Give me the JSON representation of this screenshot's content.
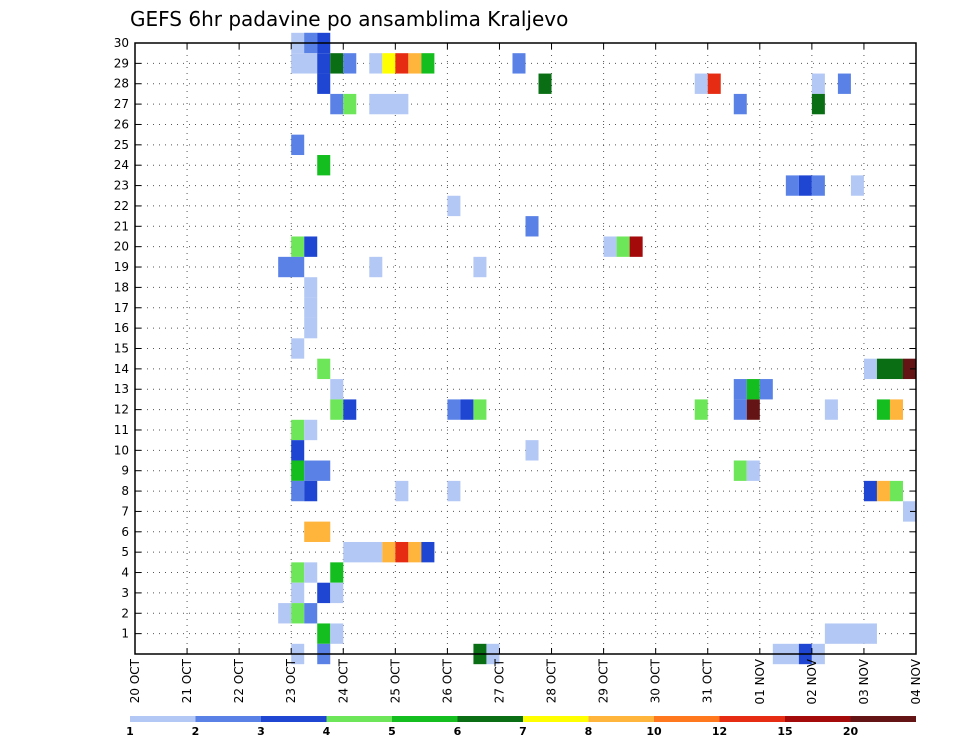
{
  "chart_data": {
    "type": "heatmap",
    "title": "GEFS 6hr padavine po ansamblima Kraljevo",
    "xlabel": "",
    "ylabel": "",
    "x_tick_labels": [
      "20 OCT",
      "21 OCT",
      "22 OCT",
      "23 OCT",
      "24 OCT",
      "25 OCT",
      "26 OCT",
      "27 OCT",
      "28 OCT",
      "29 OCT",
      "30 OCT",
      "31 OCT",
      "01 NOV",
      "02 NOV",
      "03 NOV",
      "04 NOV"
    ],
    "y_tick_labels": [
      "1",
      "2",
      "3",
      "4",
      "5",
      "6",
      "7",
      "8",
      "9",
      "10",
      "11",
      "12",
      "13",
      "14",
      "15",
      "16",
      "17",
      "18",
      "19",
      "20",
      "21",
      "22",
      "23",
      "24",
      "25",
      "26",
      "27",
      "28",
      "29",
      "30"
    ],
    "xlim": [
      0,
      15
    ],
    "ylim": [
      0,
      30
    ],
    "grid": true,
    "legend": {
      "placement": "bottom",
      "labels": [
        "1",
        "2",
        "3",
        "4",
        "5",
        "6",
        "7",
        "8",
        "10",
        "12",
        "15",
        "20"
      ],
      "colors": [
        "#b4c8f5",
        "#5a82e6",
        "#1e46d2",
        "#6ee65a",
        "#14be1e",
        "#0a6e14",
        "#ffff00",
        "#ffb43c",
        "#ff781e",
        "#e62d14",
        "#a50a0a",
        "#641414"
      ]
    },
    "cells": [
      {
        "x": 3.0,
        "w": 0.5,
        "y": 30,
        "v": 1
      },
      {
        "x": 3.25,
        "w": 0.25,
        "y": 30,
        "v": 2
      },
      {
        "x": 3.5,
        "w": 0.25,
        "y": 30,
        "v": 3
      },
      {
        "x": 3.0,
        "w": 0.5,
        "y": 29,
        "v": 1
      },
      {
        "x": 3.5,
        "w": 0.25,
        "y": 29,
        "v": 3
      },
      {
        "x": 3.75,
        "w": 0.25,
        "y": 29,
        "v": 6
      },
      {
        "x": 4.0,
        "w": 0.25,
        "y": 29,
        "v": 2
      },
      {
        "x": 4.5,
        "w": 0.25,
        "y": 29,
        "v": 1
      },
      {
        "x": 4.75,
        "w": 0.25,
        "y": 29,
        "v": 7
      },
      {
        "x": 5.0,
        "w": 0.25,
        "y": 29,
        "v": 12
      },
      {
        "x": 5.25,
        "w": 0.25,
        "y": 29,
        "v": 8
      },
      {
        "x": 5.5,
        "w": 0.25,
        "y": 29,
        "v": 5
      },
      {
        "x": 7.25,
        "w": 0.25,
        "y": 29,
        "v": 2
      },
      {
        "x": 3.5,
        "w": 0.25,
        "y": 28,
        "v": 3
      },
      {
        "x": 7.75,
        "w": 0.25,
        "y": 28,
        "v": 6
      },
      {
        "x": 10.75,
        "w": 0.25,
        "y": 28,
        "v": 1
      },
      {
        "x": 11.0,
        "w": 0.25,
        "y": 28,
        "v": 12
      },
      {
        "x": 13.0,
        "w": 0.25,
        "y": 28,
        "v": 1
      },
      {
        "x": 13.5,
        "w": 0.25,
        "y": 28,
        "v": 2
      },
      {
        "x": 3.75,
        "w": 0.25,
        "y": 27,
        "v": 2
      },
      {
        "x": 4.0,
        "w": 0.25,
        "y": 27,
        "v": 4
      },
      {
        "x": 4.5,
        "w": 0.75,
        "y": 27,
        "v": 1
      },
      {
        "x": 11.5,
        "w": 0.25,
        "y": 27,
        "v": 2
      },
      {
        "x": 13.0,
        "w": 0.25,
        "y": 27,
        "v": 6
      },
      {
        "x": 3.0,
        "w": 0.25,
        "y": 25,
        "v": 2
      },
      {
        "x": 3.5,
        "w": 0.25,
        "y": 24,
        "v": 5
      },
      {
        "x": 12.5,
        "w": 0.25,
        "y": 23,
        "v": 2
      },
      {
        "x": 12.75,
        "w": 0.25,
        "y": 23,
        "v": 3
      },
      {
        "x": 13.0,
        "w": 0.25,
        "y": 23,
        "v": 2
      },
      {
        "x": 13.75,
        "w": 0.25,
        "y": 23,
        "v": 1
      },
      {
        "x": 6.0,
        "w": 0.25,
        "y": 22,
        "v": 1
      },
      {
        "x": 7.5,
        "w": 0.25,
        "y": 21,
        "v": 2
      },
      {
        "x": 3.0,
        "w": 0.25,
        "y": 20,
        "v": 4
      },
      {
        "x": 3.25,
        "w": 0.25,
        "y": 20,
        "v": 3
      },
      {
        "x": 9.0,
        "w": 0.25,
        "y": 20,
        "v": 1
      },
      {
        "x": 9.25,
        "w": 0.25,
        "y": 20,
        "v": 4
      },
      {
        "x": 9.5,
        "w": 0.25,
        "y": 20,
        "v": 15
      },
      {
        "x": 2.75,
        "w": 0.5,
        "y": 19,
        "v": 2
      },
      {
        "x": 4.5,
        "w": 0.25,
        "y": 19,
        "v": 1
      },
      {
        "x": 6.5,
        "w": 0.25,
        "y": 19,
        "v": 1
      },
      {
        "x": 3.25,
        "w": 0.25,
        "y": 18,
        "v": 1
      },
      {
        "x": 3.25,
        "w": 0.25,
        "y": 17,
        "v": 1
      },
      {
        "x": 3.25,
        "w": 0.25,
        "y": 16,
        "v": 1
      },
      {
        "x": 3.0,
        "w": 0.25,
        "y": 15,
        "v": 1
      },
      {
        "x": 3.5,
        "w": 0.25,
        "y": 14,
        "v": 4
      },
      {
        "x": 14.0,
        "w": 0.25,
        "y": 14,
        "v": 1
      },
      {
        "x": 14.25,
        "w": 0.5,
        "y": 14,
        "v": 6
      },
      {
        "x": 14.75,
        "w": 0.25,
        "y": 14,
        "v": 20
      },
      {
        "x": 3.75,
        "w": 0.25,
        "y": 13,
        "v": 1
      },
      {
        "x": 11.5,
        "w": 0.25,
        "y": 13,
        "v": 2
      },
      {
        "x": 11.75,
        "w": 0.25,
        "y": 13,
        "v": 5
      },
      {
        "x": 12.0,
        "w": 0.25,
        "y": 13,
        "v": 2
      },
      {
        "x": 3.75,
        "w": 0.25,
        "y": 12,
        "v": 4
      },
      {
        "x": 4.0,
        "w": 0.25,
        "y": 12,
        "v": 3
      },
      {
        "x": 6.0,
        "w": 0.25,
        "y": 12,
        "v": 2
      },
      {
        "x": 6.25,
        "w": 0.25,
        "y": 12,
        "v": 3
      },
      {
        "x": 6.5,
        "w": 0.25,
        "y": 12,
        "v": 4
      },
      {
        "x": 10.75,
        "w": 0.25,
        "y": 12,
        "v": 4
      },
      {
        "x": 11.5,
        "w": 0.25,
        "y": 12,
        "v": 2
      },
      {
        "x": 11.75,
        "w": 0.25,
        "y": 12,
        "v": 20
      },
      {
        "x": 13.25,
        "w": 0.25,
        "y": 12,
        "v": 1
      },
      {
        "x": 14.25,
        "w": 0.25,
        "y": 12,
        "v": 5
      },
      {
        "x": 14.5,
        "w": 0.25,
        "y": 12,
        "v": 8
      },
      {
        "x": 3.0,
        "w": 0.25,
        "y": 11,
        "v": 4
      },
      {
        "x": 3.25,
        "w": 0.25,
        "y": 11,
        "v": 1
      },
      {
        "x": 3.0,
        "w": 0.25,
        "y": 10,
        "v": 3
      },
      {
        "x": 7.5,
        "w": 0.25,
        "y": 10,
        "v": 1
      },
      {
        "x": 3.0,
        "w": 0.25,
        "y": 9,
        "v": 5
      },
      {
        "x": 3.25,
        "w": 0.5,
        "y": 9,
        "v": 2
      },
      {
        "x": 11.5,
        "w": 0.25,
        "y": 9,
        "v": 4
      },
      {
        "x": 11.75,
        "w": 0.25,
        "y": 9,
        "v": 1
      },
      {
        "x": 3.0,
        "w": 0.25,
        "y": 8,
        "v": 2
      },
      {
        "x": 3.25,
        "w": 0.25,
        "y": 8,
        "v": 3
      },
      {
        "x": 5.0,
        "w": 0.25,
        "y": 8,
        "v": 1
      },
      {
        "x": 6.0,
        "w": 0.25,
        "y": 8,
        "v": 1
      },
      {
        "x": 14.0,
        "w": 0.25,
        "y": 8,
        "v": 3
      },
      {
        "x": 14.25,
        "w": 0.25,
        "y": 8,
        "v": 8
      },
      {
        "x": 14.5,
        "w": 0.25,
        "y": 8,
        "v": 4
      },
      {
        "x": 14.75,
        "w": 0.25,
        "y": 7,
        "v": 1
      },
      {
        "x": 3.25,
        "w": 0.5,
        "y": 6,
        "v": 8
      },
      {
        "x": 4.0,
        "w": 0.75,
        "y": 5,
        "v": 1
      },
      {
        "x": 4.75,
        "w": 0.25,
        "y": 5,
        "v": 8
      },
      {
        "x": 5.0,
        "w": 0.25,
        "y": 5,
        "v": 12
      },
      {
        "x": 5.25,
        "w": 0.25,
        "y": 5,
        "v": 8
      },
      {
        "x": 5.5,
        "w": 0.25,
        "y": 5,
        "v": 3
      },
      {
        "x": 3.0,
        "w": 0.25,
        "y": 4,
        "v": 4
      },
      {
        "x": 3.25,
        "w": 0.25,
        "y": 4,
        "v": 1
      },
      {
        "x": 3.75,
        "w": 0.25,
        "y": 4,
        "v": 5
      },
      {
        "x": 3.0,
        "w": 0.25,
        "y": 3,
        "v": 1
      },
      {
        "x": 3.5,
        "w": 0.25,
        "y": 3,
        "v": 3
      },
      {
        "x": 3.75,
        "w": 0.25,
        "y": 3,
        "v": 1
      },
      {
        "x": 2.75,
        "w": 0.25,
        "y": 2,
        "v": 1
      },
      {
        "x": 3.0,
        "w": 0.25,
        "y": 2,
        "v": 4
      },
      {
        "x": 3.25,
        "w": 0.25,
        "y": 2,
        "v": 2
      },
      {
        "x": 3.5,
        "w": 0.25,
        "y": 1,
        "v": 5
      },
      {
        "x": 3.75,
        "w": 0.25,
        "y": 1,
        "v": 1
      },
      {
        "x": 13.25,
        "w": 1.0,
        "y": 1,
        "v": 1
      },
      {
        "x": 3.0,
        "w": 0.25,
        "y": 0,
        "v": 1
      },
      {
        "x": 3.5,
        "w": 0.25,
        "y": 0,
        "v": 2
      },
      {
        "x": 6.5,
        "w": 0.25,
        "y": 0,
        "v": 6
      },
      {
        "x": 6.75,
        "w": 0.25,
        "y": 0,
        "v": 1
      },
      {
        "x": 12.25,
        "w": 0.5,
        "y": 0,
        "v": 1
      },
      {
        "x": 12.75,
        "w": 0.25,
        "y": 0,
        "v": 3
      },
      {
        "x": 13.0,
        "w": 0.25,
        "y": 0,
        "v": 1
      }
    ]
  }
}
